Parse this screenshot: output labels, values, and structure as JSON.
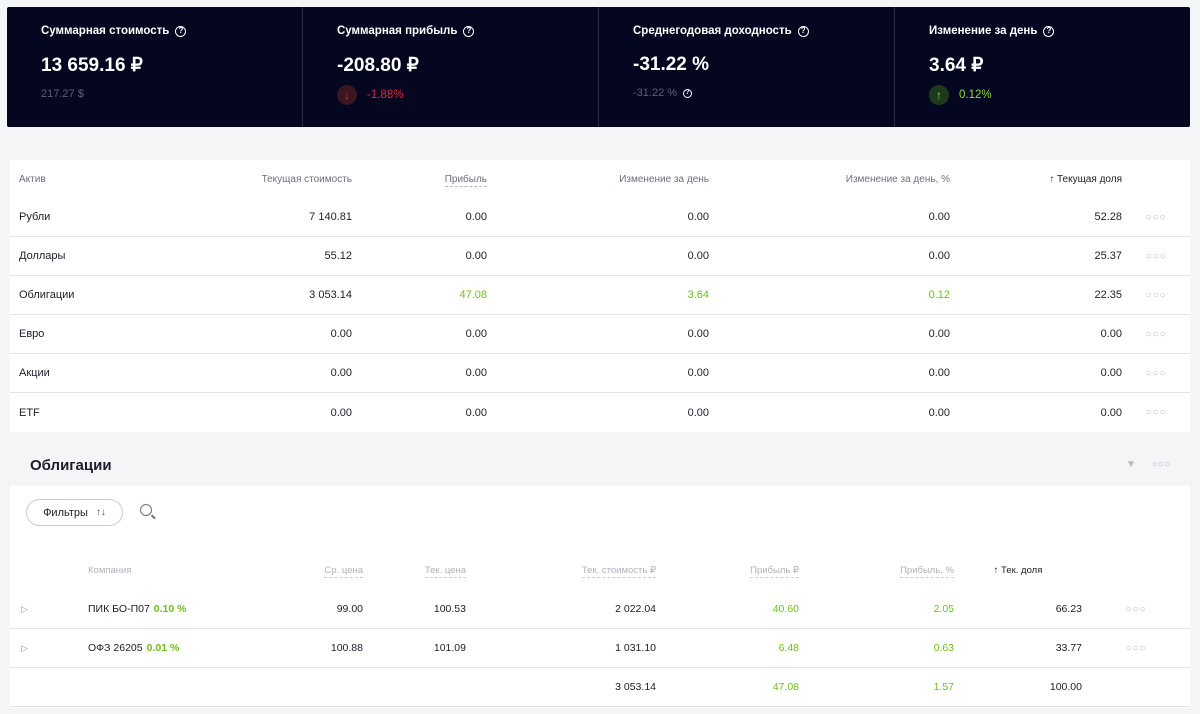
{
  "summary": [
    {
      "title": "Суммарная стоимость",
      "value": "13 659.16 ₽",
      "sub": "217.27 $"
    },
    {
      "title": "Суммарная прибыль",
      "value": "-208.80 ₽",
      "change": "-1.88%",
      "direction": "down"
    },
    {
      "title": "Среднегодовая доходность",
      "value": "-31.22 %",
      "sub": "-31.22 %"
    },
    {
      "title": "Изменение за день",
      "value": "3.64 ₽",
      "change": "0.12%",
      "direction": "up"
    }
  ],
  "assets": {
    "headers": [
      "Актив",
      "Текущая стоимость",
      "Прибыль",
      "Изменение за день",
      "Изменение за день, %",
      "Текущая доля"
    ],
    "sort_arrow": "↑",
    "rows": [
      {
        "name": "Рубли",
        "value": "7 140.81",
        "profit": "0.00",
        "day": "0.00",
        "day_pct": "0.00",
        "share": "52.28"
      },
      {
        "name": "Доллары",
        "value": "55.12",
        "profit": "0.00",
        "day": "0.00",
        "day_pct": "0.00",
        "share": "25.37"
      },
      {
        "name": "Облигации",
        "value": "3 053.14",
        "profit": "47.08",
        "day": "3.64",
        "day_pct": "0.12",
        "share": "22.35"
      },
      {
        "name": "Евро",
        "value": "0.00",
        "profit": "0.00",
        "day": "0.00",
        "day_pct": "0.00",
        "share": "0.00"
      },
      {
        "name": "Акции",
        "value": "0.00",
        "profit": "0.00",
        "day": "0.00",
        "day_pct": "0.00",
        "share": "0.00"
      },
      {
        "name": "ETF",
        "value": "0.00",
        "profit": "0.00",
        "day": "0.00",
        "day_pct": "0.00",
        "share": "0.00"
      }
    ],
    "dots": "○○○"
  },
  "bonds": {
    "title": "Облигации",
    "filters_label": "Фильтры",
    "headers": [
      "Компания",
      "Ср. цена",
      "Тек. цена",
      "Тек. стоимость ₽",
      "Прибыль ₽",
      "Прибыль, %",
      "Тек. доля"
    ],
    "rows": [
      {
        "name": "ПИК БО-П07",
        "day_pct": "0.10 %",
        "avg": "99.00",
        "cur": "100.53",
        "value": "2 022.04",
        "profit": "40.60",
        "profit_pct": "2.05",
        "share": "66.23"
      },
      {
        "name": "ОФЗ 26205",
        "day_pct": "0.01 %",
        "avg": "100.88",
        "cur": "101.09",
        "value": "1 031.10",
        "profit": "6.48",
        "profit_pct": "0.63",
        "share": "33.77"
      }
    ],
    "total": {
      "value": "3 053.14",
      "profit": "47.08",
      "profit_pct": "1.57",
      "share": "100.00"
    }
  },
  "colors": {
    "header_bg": "#05061f",
    "positive": "#6ec21a",
    "negative": "#e0283b"
  }
}
